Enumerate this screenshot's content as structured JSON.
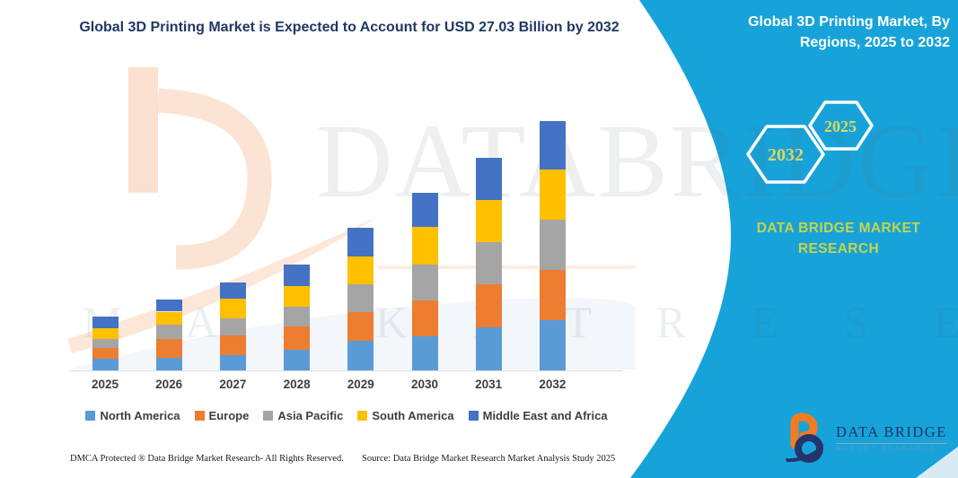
{
  "watermark": {
    "big": "DATABRIDGE",
    "row": "M A R K E T    R E S E A R C H"
  },
  "side_panel": {
    "title": "Global 3D Printing Market, By Regions, 2025 to 2032",
    "hexagons": [
      {
        "label": "2032"
      },
      {
        "label": "2025"
      }
    ],
    "brand_caption": "DATA BRIDGE MARKET RESEARCH",
    "logo": {
      "brand": "DATA BRIDGE",
      "sub": "MARKET RESEARCH"
    },
    "background_color": "#17A3DA",
    "hexagon_text_color": "#DCD75F",
    "caption_color": "#C8D348"
  },
  "footer": {
    "left": "DMCA Protected ® Data Bridge Market Research-  All Rights Reserved.",
    "right": "Source: Data Bridge Market Research  Market Analysis Study 2025"
  },
  "chart_data": {
    "type": "bar",
    "stacked": true,
    "title": "Global 3D Printing Market is Expected to Account for USD 27.03 Billion by 2032",
    "units": "USD Billion (estimated from bar heights; 2032 total anchored to 27.03)",
    "categories": [
      "2025",
      "2026",
      "2027",
      "2028",
      "2029",
      "2030",
      "2031",
      "2032"
    ],
    "series": [
      {
        "name": "North America",
        "color": "#5B9BD5",
        "values": [
          1.3,
          1.41,
          1.7,
          2.24,
          3.18,
          3.73,
          4.67,
          5.45
        ]
      },
      {
        "name": "Europe",
        "color": "#ED7D31",
        "values": [
          1.14,
          2.0,
          2.14,
          2.52,
          3.14,
          3.83,
          4.67,
          5.42
        ]
      },
      {
        "name": "Asia Pacific",
        "color": "#A5A5A5",
        "values": [
          0.97,
          1.51,
          1.78,
          2.11,
          3.02,
          3.89,
          4.6,
          5.45
        ]
      },
      {
        "name": "South America",
        "color": "#FFC000",
        "values": [
          1.14,
          1.46,
          2.14,
          2.24,
          3.02,
          4.16,
          4.55,
          5.45
        ]
      },
      {
        "name": "Middle East and Africa",
        "color": "#4472C4",
        "values": [
          1.27,
          1.36,
          1.78,
          2.43,
          3.14,
          3.63,
          4.57,
          5.26
        ]
      }
    ],
    "totals": [
      5.82,
      7.74,
      9.54,
      11.54,
      15.5,
      19.24,
      23.06,
      27.03
    ],
    "legend_position": "bottom",
    "grid": false,
    "axis": {
      "baseline_color": "#D9D9D9",
      "y_axis_visible": false
    }
  }
}
